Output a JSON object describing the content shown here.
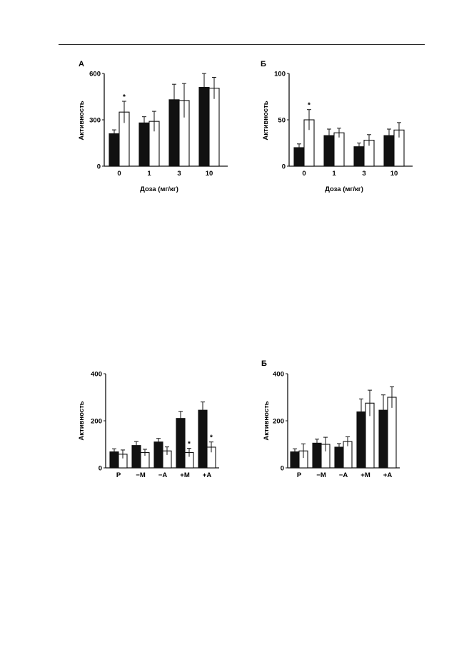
{
  "chart_data": [
    {
      "id": "c1",
      "type": "bar",
      "panel_label": "А",
      "categories": [
        "0",
        "1",
        "3",
        "10"
      ],
      "series": [
        {
          "fill": "#111111",
          "values": [
            210,
            280,
            430,
            510
          ],
          "errors": [
            25,
            40,
            100,
            90
          ]
        },
        {
          "fill": "#ffffff",
          "values": [
            350,
            290,
            425,
            505
          ],
          "errors": [
            70,
            65,
            110,
            70
          ]
        }
      ],
      "markers": [
        {
          "series": 1,
          "index": 0,
          "text": "*"
        }
      ],
      "xlabel": "Доза (мг/кг)",
      "ylabel": "Активность",
      "ylim": [
        0,
        600
      ],
      "yticks": [
        "0",
        "300",
        "600"
      ]
    },
    {
      "id": "c2",
      "type": "bar",
      "panel_label": "Б",
      "categories": [
        "0",
        "1",
        "3",
        "10"
      ],
      "series": [
        {
          "fill": "#111111",
          "values": [
            20,
            33,
            21,
            33
          ],
          "errors": [
            4,
            7,
            4,
            7
          ]
        },
        {
          "fill": "#ffffff",
          "values": [
            50,
            36,
            28,
            39
          ],
          "errors": [
            11,
            5,
            6,
            8
          ]
        }
      ],
      "markers": [
        {
          "series": 1,
          "index": 0,
          "text": "*"
        }
      ],
      "xlabel": "Доза (мг/кг)",
      "ylabel": "Активность",
      "ylim": [
        0,
        100
      ],
      "yticks": [
        "0",
        "50",
        "100"
      ]
    },
    {
      "id": "c3",
      "type": "bar",
      "panel_label": "",
      "categories": [
        "Р",
        "−М",
        "−А",
        "+М",
        "+А"
      ],
      "series": [
        {
          "fill": "#111111",
          "values": [
            68,
            95,
            110,
            210,
            245
          ],
          "errors": [
            13,
            17,
            15,
            30,
            35
          ]
        },
        {
          "fill": "#ffffff",
          "values": [
            58,
            65,
            72,
            65,
            88
          ],
          "errors": [
            18,
            14,
            17,
            18,
            22
          ]
        }
      ],
      "markers": [
        {
          "series": 1,
          "index": 3,
          "text": "*"
        },
        {
          "series": 1,
          "index": 4,
          "text": "*"
        }
      ],
      "xlabel": "",
      "ylabel": "Активность",
      "ylim": [
        0,
        400
      ],
      "yticks": [
        "0",
        "200",
        "400"
      ]
    },
    {
      "id": "c4",
      "type": "bar",
      "panel_label": "Б",
      "categories": [
        "Р",
        "−М",
        "−А",
        "+М",
        "+А"
      ],
      "series": [
        {
          "fill": "#111111",
          "values": [
            68,
            105,
            88,
            238,
            245
          ],
          "errors": [
            13,
            17,
            15,
            55,
            65
          ]
        },
        {
          "fill": "#ffffff",
          "values": [
            72,
            100,
            112,
            275,
            300
          ],
          "errors": [
            30,
            30,
            20,
            55,
            45
          ]
        }
      ],
      "markers": [],
      "xlabel": "",
      "ylabel": "Активность",
      "ylim": [
        0,
        400
      ],
      "yticks": [
        "0",
        "200",
        "400"
      ]
    }
  ]
}
